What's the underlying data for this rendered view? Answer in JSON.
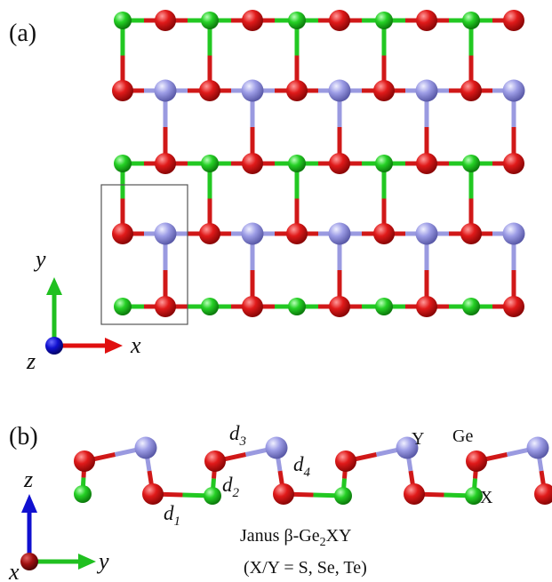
{
  "panel_a": {
    "label": "(a)",
    "axis_x": "x",
    "axis_y": "y",
    "axis_z": "z"
  },
  "panel_b": {
    "label": "(b)",
    "axis_x": "x",
    "axis_y": "y",
    "axis_z": "z",
    "d1_main": "d",
    "d1_sub": "1",
    "d2_main": "d",
    "d2_sub": "2",
    "d3_main": "d",
    "d3_sub": "3",
    "d4_main": "d",
    "d4_sub": "4",
    "label_Y": "Y",
    "label_Ge": "Ge",
    "label_X": "X",
    "caption_prefix": "Janus β-Ge",
    "caption_sub": "2",
    "caption_suffix": "XY",
    "caption_line2": "(X/Y = S, Se, Te)"
  },
  "colors": {
    "ge_atom": "#d01818",
    "x_atom": "#22c822",
    "y_atom": "#9a9ae0",
    "unit_cell": "#555555",
    "axis_x_arrow": "#e01010",
    "axis_y_arrow": "#20c020",
    "axis_z_arrow": "#1010d0",
    "axis_origin_a": "#0a0ab0",
    "axis_origin_b": "#a01010"
  }
}
